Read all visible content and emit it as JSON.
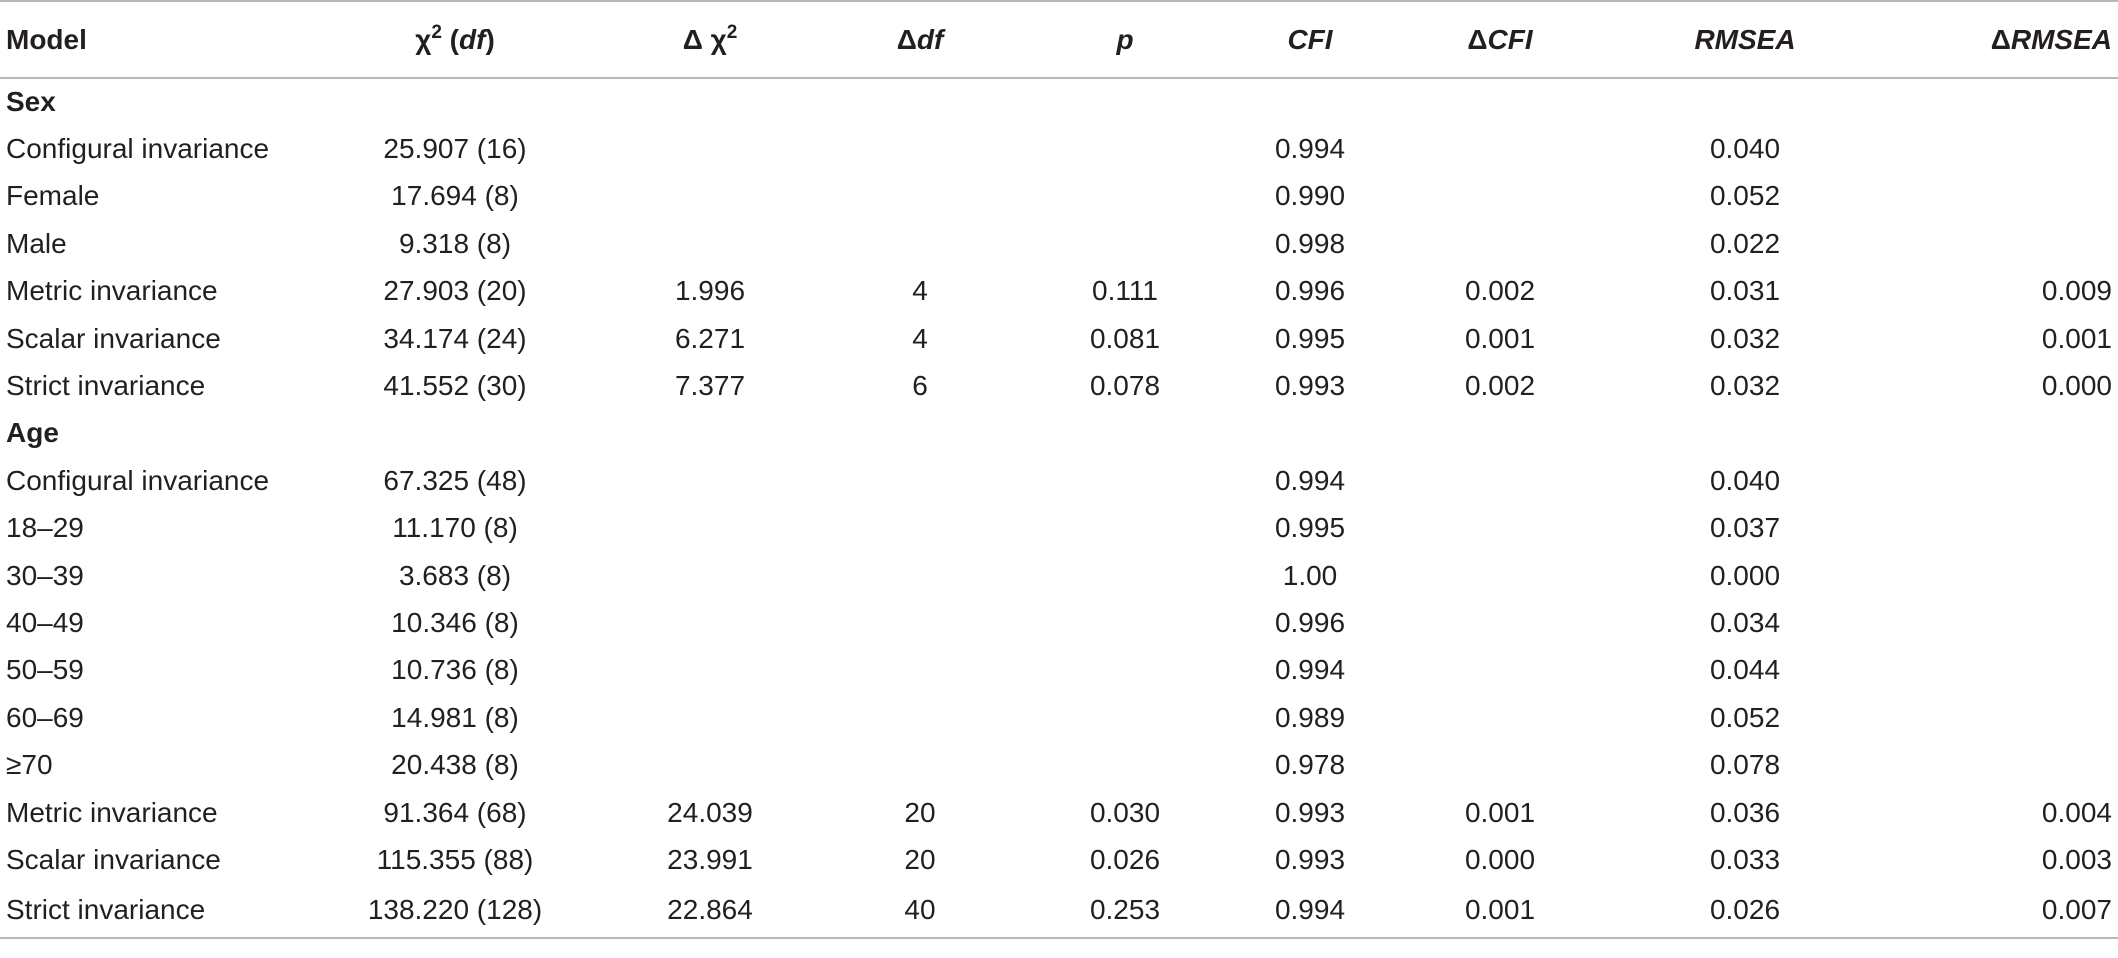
{
  "header": {
    "model": "Model",
    "chi_prefix": "χ",
    "chi_sup": "2",
    "chi_open": " (",
    "chi_df": "df",
    "chi_close": ")",
    "dchi_prefix": "Δ χ",
    "dchi_sup": "2",
    "ddf_delta": "Δ",
    "ddf_df": "df",
    "p": "p",
    "cfi": "CFI",
    "dcfi_delta": "Δ",
    "dcfi_cfi": "CFI",
    "rmsea": "RMSEA",
    "drmsea_delta": "Δ",
    "drmsea_rmsea": "RMSEA"
  },
  "rows": [
    {
      "type": "section",
      "label": "Sex"
    },
    {
      "model": "Configural invariance",
      "chi": "25.907 (16)",
      "dchi": "",
      "ddf": "",
      "p": "",
      "cfi": "0.994",
      "dcfi": "",
      "rmsea": "0.040",
      "drmsea": ""
    },
    {
      "model": "Female",
      "chi": "17.694 (8)",
      "dchi": "",
      "ddf": "",
      "p": "",
      "cfi": "0.990",
      "dcfi": "",
      "rmsea": "0.052",
      "drmsea": ""
    },
    {
      "model": "Male",
      "chi": "9.318 (8)",
      "dchi": "",
      "ddf": "",
      "p": "",
      "cfi": "0.998",
      "dcfi": "",
      "rmsea": "0.022",
      "drmsea": ""
    },
    {
      "model": "Metric invariance",
      "chi": "27.903 (20)",
      "dchi": "1.996",
      "ddf": "4",
      "p": "0.111",
      "cfi": "0.996",
      "dcfi": "0.002",
      "rmsea": "0.031",
      "drmsea": "0.009"
    },
    {
      "model": "Scalar invariance",
      "chi": "34.174 (24)",
      "dchi": "6.271",
      "ddf": "4",
      "p": "0.081",
      "cfi": "0.995",
      "dcfi": "0.001",
      "rmsea": "0.032",
      "drmsea": "0.001"
    },
    {
      "model": "Strict invariance",
      "chi": "41.552 (30)",
      "dchi": "7.377",
      "ddf": "6",
      "p": "0.078",
      "cfi": "0.993",
      "dcfi": "0.002",
      "rmsea": "0.032",
      "drmsea": "0.000"
    },
    {
      "type": "section",
      "label": "Age"
    },
    {
      "model": "Configural invariance",
      "chi": "67.325 (48)",
      "dchi": "",
      "ddf": "",
      "p": "",
      "cfi": "0.994",
      "dcfi": "",
      "rmsea": "0.040",
      "drmsea": ""
    },
    {
      "model": "18–29",
      "chi": "11.170 (8)",
      "dchi": "",
      "ddf": "",
      "p": "",
      "cfi": "0.995",
      "dcfi": "",
      "rmsea": "0.037",
      "drmsea": ""
    },
    {
      "model": "30–39",
      "chi": "3.683 (8)",
      "dchi": "",
      "ddf": "",
      "p": "",
      "cfi": "1.00",
      "dcfi": "",
      "rmsea": "0.000",
      "drmsea": ""
    },
    {
      "model": "40–49",
      "chi": "10.346 (8)",
      "dchi": "",
      "ddf": "",
      "p": "",
      "cfi": "0.996",
      "dcfi": "",
      "rmsea": "0.034",
      "drmsea": ""
    },
    {
      "model": "50–59",
      "chi": "10.736 (8)",
      "dchi": "",
      "ddf": "",
      "p": "",
      "cfi": "0.994",
      "dcfi": "",
      "rmsea": "0.044",
      "drmsea": ""
    },
    {
      "model": "60–69",
      "chi": "14.981 (8)",
      "dchi": "",
      "ddf": "",
      "p": "",
      "cfi": "0.989",
      "dcfi": "",
      "rmsea": "0.052",
      "drmsea": ""
    },
    {
      "model": "≥70",
      "chi": "20.438 (8)",
      "dchi": "",
      "ddf": "",
      "p": "",
      "cfi": "0.978",
      "dcfi": "",
      "rmsea": "0.078",
      "drmsea": ""
    },
    {
      "model": "Metric invariance",
      "chi": "91.364 (68)",
      "dchi": "24.039",
      "ddf": "20",
      "p": "0.030",
      "cfi": "0.993",
      "dcfi": "0.001",
      "rmsea": "0.036",
      "drmsea": "0.004"
    },
    {
      "model": "Scalar invariance",
      "chi": "115.355 (88)",
      "dchi": "23.991",
      "ddf": "20",
      "p": "0.026",
      "cfi": "0.993",
      "dcfi": "0.000",
      "rmsea": "0.033",
      "drmsea": "0.003"
    },
    {
      "model": "Strict invariance",
      "chi": "138.220 (128)",
      "dchi": "22.864",
      "ddf": "40",
      "p": "0.253",
      "cfi": "0.994",
      "dcfi": "0.001",
      "rmsea": "0.026",
      "drmsea": "0.007"
    }
  ]
}
